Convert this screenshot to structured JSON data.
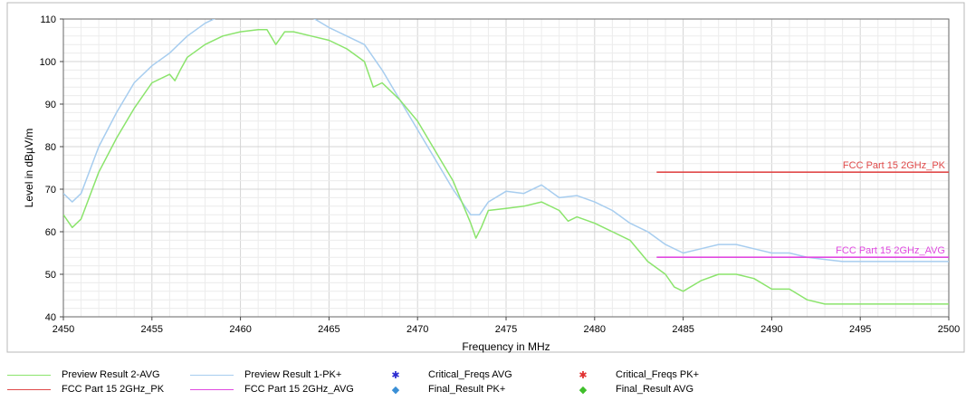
{
  "chart_data": {
    "type": "line",
    "title": "",
    "xlabel": "Frequency in MHz",
    "ylabel": "Level in dBµV/m",
    "xlim": [
      2450,
      2500
    ],
    "ylim": [
      40,
      110
    ],
    "x_ticks": [
      "2450",
      "2455",
      "2460",
      "2465",
      "2470",
      "2475",
      "2480",
      "2485",
      "2490",
      "2495",
      "2500"
    ],
    "y_ticks": [
      "40",
      "50",
      "60",
      "70",
      "80",
      "90",
      "100",
      "110"
    ],
    "grid": true,
    "legend_position": "bottom",
    "series": [
      {
        "name": "Preview Result 1-PK+",
        "color": "#a7cdef",
        "x": [
          2450,
          2450.5,
          2451,
          2452,
          2453,
          2454,
          2455,
          2456,
          2457,
          2458,
          2459,
          2460,
          2461,
          2461.8,
          2462.5,
          2463,
          2464,
          2465,
          2466,
          2467,
          2468,
          2469,
          2470,
          2471,
          2472,
          2473,
          2473.5,
          2474,
          2475,
          2476,
          2477,
          2478,
          2479,
          2480,
          2481,
          2482,
          2483,
          2484,
          2485,
          2486,
          2487,
          2488,
          2489,
          2490,
          2491,
          2492,
          2493,
          2494,
          2495,
          2496,
          2497,
          2498,
          2499,
          2500
        ],
        "values": [
          69,
          67,
          69,
          80,
          88,
          95,
          99,
          102,
          106,
          109,
          111,
          112,
          112,
          111.5,
          111,
          110.5,
          110.5,
          108,
          106,
          104,
          98,
          91,
          84,
          77,
          70,
          64,
          64,
          67,
          69.5,
          69,
          71,
          68,
          68.5,
          67,
          65,
          62,
          60,
          57,
          55,
          56,
          57,
          57,
          56,
          55,
          55,
          54,
          53.5,
          53,
          53,
          53,
          53,
          53,
          53,
          53
        ]
      },
      {
        "name": "Preview Result 2-AVG",
        "color": "#8be46c",
        "x": [
          2450,
          2450.5,
          2451,
          2452,
          2453,
          2454,
          2455,
          2456,
          2456.3,
          2456.6,
          2457,
          2458,
          2459,
          2460,
          2461,
          2461.5,
          2462,
          2462.5,
          2463,
          2464,
          2465,
          2466,
          2467,
          2467.5,
          2468,
          2469,
          2470,
          2471,
          2472,
          2473,
          2473.3,
          2473.6,
          2474,
          2475,
          2476,
          2477,
          2478,
          2478.5,
          2479,
          2480,
          2481,
          2482,
          2483,
          2484,
          2484.5,
          2485,
          2486,
          2487,
          2488,
          2489,
          2490,
          2491,
          2492,
          2493,
          2494,
          2495,
          2496,
          2497,
          2498,
          2499,
          2500
        ],
        "values": [
          64,
          61,
          63,
          74,
          82,
          89,
          95,
          97,
          95.5,
          98,
          101,
          104,
          106,
          107,
          107.5,
          107.5,
          104,
          107,
          107,
          106,
          105,
          103,
          100,
          94,
          95,
          91,
          86,
          79,
          72,
          62,
          58.5,
          61,
          65,
          65.5,
          66,
          67,
          65,
          62.5,
          63.5,
          62,
          60,
          58,
          53,
          50,
          47,
          46,
          48.5,
          50,
          50,
          49,
          46.5,
          46.5,
          44,
          43,
          43,
          43,
          43,
          43,
          43,
          43,
          43
        ]
      },
      {
        "name": "FCC Part 15 2GHz_PK",
        "color": "#e04a4a",
        "x": [
          2483.5,
          2500
        ],
        "values": [
          74,
          74
        ]
      },
      {
        "name": "FCC Part 15 2GHz_AVG",
        "color": "#e04ae0",
        "x": [
          2483.5,
          2500
        ],
        "values": [
          54,
          54
        ]
      }
    ],
    "limit_labels": {
      "pk": "FCC Part 15 2GHz_PK",
      "avg": "FCC Part 15 2GHz_AVG"
    }
  },
  "legend": [
    {
      "label": "Preview Result 2-AVG",
      "kind": "line",
      "color": "#8be46c"
    },
    {
      "label": "Preview Result 1-PK+",
      "kind": "line",
      "color": "#a7cdef"
    },
    {
      "label": "Critical_Freqs AVG",
      "kind": "marker",
      "glyph": "✱",
      "color": "#2a2ad0"
    },
    {
      "label": "Critical_Freqs PK+",
      "kind": "marker",
      "glyph": "✱",
      "color": "#e03030"
    },
    {
      "label": "FCC Part 15 2GHz_PK",
      "kind": "line",
      "color": "#e04a4a"
    },
    {
      "label": "FCC Part 15 2GHz_AVG",
      "kind": "line",
      "color": "#e04ae0"
    },
    {
      "label": "Final_Result PK+",
      "kind": "marker",
      "glyph": "◆",
      "color": "#3a8fd6"
    },
    {
      "label": "Final_Result AVG",
      "kind": "marker",
      "glyph": "◆",
      "color": "#3fbf2a"
    }
  ]
}
